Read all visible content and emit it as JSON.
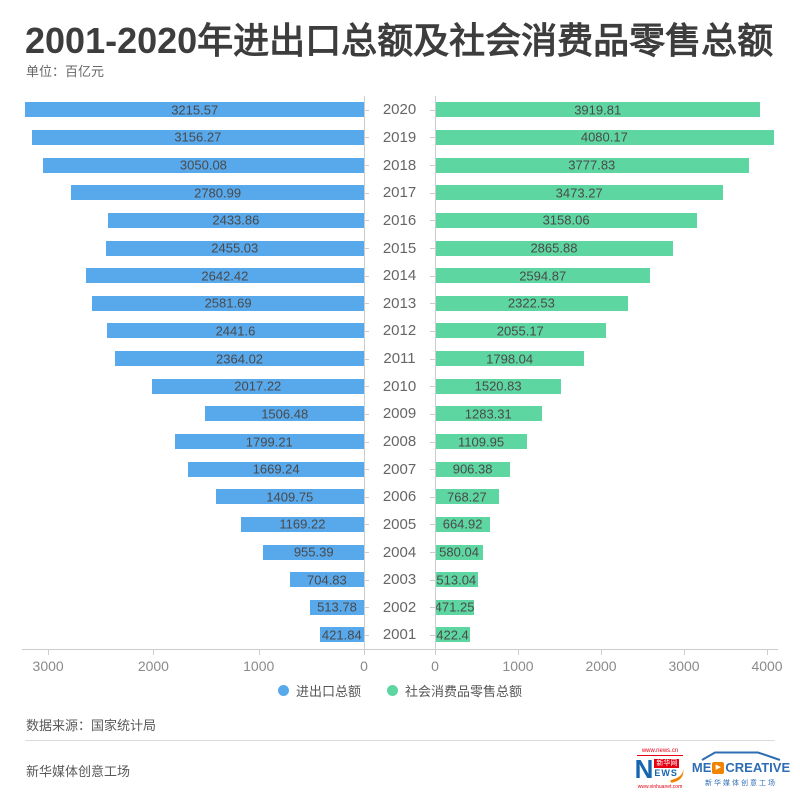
{
  "title": "2001-2020年进出口总额及社会消费品零售总额",
  "unit_label": "单位：百亿元",
  "chart_data": {
    "type": "bar",
    "layout": "mirrored-horizontal",
    "title": "2001-2020年进出口总额及社会消费品零售总额",
    "unit": "百亿元",
    "categories": [
      "2020",
      "2019",
      "2018",
      "2017",
      "2016",
      "2015",
      "2014",
      "2013",
      "2012",
      "2011",
      "2010",
      "2009",
      "2008",
      "2007",
      "2006",
      "2005",
      "2004",
      "2003",
      "2002",
      "2001"
    ],
    "series": [
      {
        "name": "进出口总额",
        "side": "left",
        "color": "#58a8ec",
        "axis_ticks": [
          3000,
          2000,
          1000,
          0
        ],
        "axis_max": 3248,
        "values": [
          3215.57,
          3156.27,
          3050.08,
          2780.99,
          2433.86,
          2455.03,
          2642.42,
          2581.69,
          2441.6,
          2364.02,
          2017.22,
          1506.48,
          1799.21,
          1669.24,
          1409.75,
          1169.22,
          955.39,
          704.83,
          513.78,
          421.84
        ]
      },
      {
        "name": "社会消费品零售总额",
        "side": "right",
        "color": "#5ed6a1",
        "axis_ticks": [
          0,
          1000,
          2000,
          3000,
          4000
        ],
        "axis_max": 4132,
        "values": [
          3919.81,
          4080.17,
          3777.83,
          3473.27,
          3158.06,
          2865.88,
          2594.87,
          2322.53,
          2055.17,
          1798.04,
          1520.83,
          1283.31,
          1109.95,
          906.38,
          768.27,
          664.92,
          580.04,
          513.04,
          471.25,
          422.4
        ]
      }
    ],
    "grid": "off",
    "legend_position": "bottom"
  },
  "legend": {
    "items": [
      {
        "label": "进出口总额",
        "color": "#58a8ec"
      },
      {
        "label": "社会消费品零售总额",
        "color": "#5ed6a1"
      }
    ]
  },
  "footer": {
    "source": "数据来源：国家统计局",
    "studio": "新华媒体创意工场"
  },
  "logos": {
    "xinhua": {
      "url_top": "www.news.cn",
      "letter": "N",
      "redbox": "新华网",
      "ews": "EWS",
      "url_bottom": "www.xinhuanet.com"
    },
    "medcreative": {
      "text_pre": "ME",
      "play": "▶",
      "text_post": "CREATIVE",
      "caption": "新华媒体创意工场"
    }
  },
  "colors": {
    "import_export": "#58a8ec",
    "retail": "#5ed6a1",
    "axis_line": "#cccccc",
    "tick_label": "#8a8a8a"
  }
}
